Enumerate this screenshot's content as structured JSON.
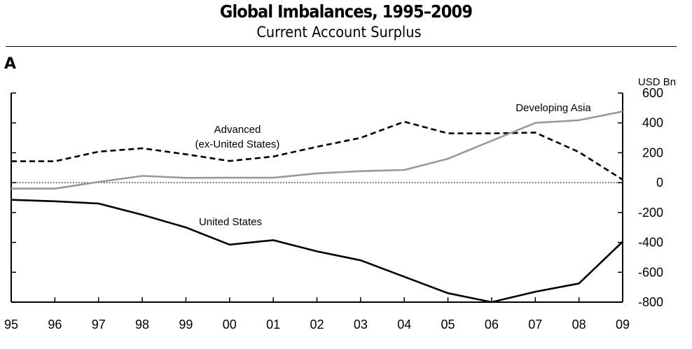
{
  "chart_data": {
    "type": "line",
    "title": "Global Imbalances, 1995–2009",
    "subtitle": "Current Account Surplus",
    "panel_label": "A",
    "ylabel": "USD Bn",
    "x": [
      "95",
      "96",
      "97",
      "98",
      "99",
      "00",
      "01",
      "02",
      "03",
      "04",
      "05",
      "06",
      "07",
      "08",
      "09"
    ],
    "ylim": [
      -800,
      600
    ],
    "yticks": [
      600,
      400,
      200,
      0,
      -200,
      -400,
      -600,
      -800
    ],
    "ytick_labels": [
      "600",
      "400",
      "200",
      "0",
      "-200",
      "-400",
      "-600",
      "-800"
    ],
    "y_axis_side": "right",
    "zero_line": "dotted",
    "grid": false,
    "series": [
      {
        "name": "Advanced (ex-United States)",
        "label_lines": [
          "Advanced",
          "(ex-United States)"
        ],
        "style": "dashed",
        "color": "#000000",
        "values": [
          143,
          143,
          207,
          230,
          190,
          145,
          175,
          240,
          300,
          408,
          330,
          330,
          335,
          205,
          20
        ]
      },
      {
        "name": "Developing Asia",
        "label_lines": [
          "Developing Asia"
        ],
        "style": "solid",
        "color": "#999999",
        "values": [
          -40,
          -40,
          5,
          45,
          32,
          33,
          33,
          62,
          77,
          85,
          160,
          280,
          400,
          418,
          477
        ]
      },
      {
        "name": "United States",
        "label_lines": [
          "United States"
        ],
        "style": "solid",
        "color": "#000000",
        "values": [
          -115,
          -125,
          -140,
          -215,
          -300,
          -415,
          -385,
          -460,
          -520,
          -630,
          -740,
          -800,
          -730,
          -675,
          -395
        ]
      }
    ]
  }
}
